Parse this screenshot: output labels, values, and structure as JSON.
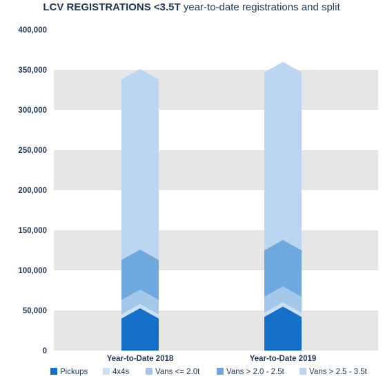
{
  "title": {
    "bold": "LCV REGISTRATIONS <3.5T",
    "rest": "year-to-date registrations and split"
  },
  "chart_data": {
    "type": "bar",
    "stacked": true,
    "categories": [
      "Year-to-Date 2018",
      "Year-to-Date 2019"
    ],
    "series": [
      {
        "name": "Pickups",
        "values": [
          40000,
          42000
        ],
        "color": "#1570c9"
      },
      {
        "name": "4x4s",
        "values": [
          5000,
          5000
        ],
        "color": "#cce0f4"
      },
      {
        "name": "Vans <= 2.0t",
        "values": [
          18000,
          20000
        ],
        "color": "#a4c8ea"
      },
      {
        "name": "Vans > 2.0 - 2.5t",
        "values": [
          50000,
          58000
        ],
        "color": "#6fa8df"
      },
      {
        "name": "Vans > 2.5 - 3.5t",
        "values": [
          225000,
          222000
        ],
        "color": "#bad6f0"
      }
    ],
    "yticks": [
      "0",
      "50,000",
      "100,000",
      "150,000",
      "200,000",
      "250,000",
      "300,000",
      "350,000",
      "400,000"
    ],
    "ylim": [
      0,
      400000
    ],
    "grid": "alternating horizontal bands",
    "legend": "bottom"
  }
}
